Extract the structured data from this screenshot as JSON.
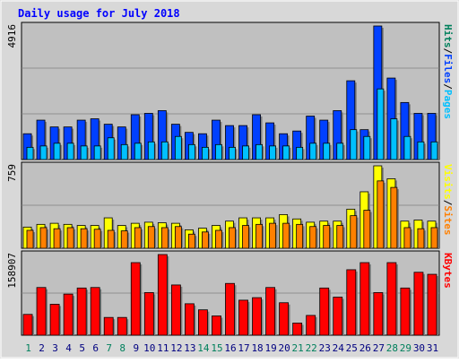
{
  "chart_data": [
    {
      "type": "bar",
      "title": "Daily usage for July 2018",
      "ymax_label": "4916",
      "ylim": [
        0,
        4916
      ],
      "categories": [
        "1",
        "2",
        "3",
        "4",
        "5",
        "6",
        "7",
        "8",
        "9",
        "10",
        "11",
        "12",
        "13",
        "14",
        "15",
        "16",
        "17",
        "18",
        "19",
        "20",
        "21",
        "22",
        "23",
        "24",
        "25",
        "26",
        "27",
        "28",
        "29",
        "30",
        "31"
      ],
      "series": [
        {
          "name": "Hits",
          "values": [
            0,
            0,
            0,
            0,
            0,
            0,
            0,
            0,
            0,
            0,
            0,
            0,
            0,
            0,
            0,
            0,
            0,
            0,
            0,
            0,
            0,
            0,
            0,
            0,
            0,
            0,
            0,
            0,
            0,
            0,
            0
          ]
        },
        {
          "name": "Files",
          "values": [
            950,
            1450,
            1200,
            1200,
            1450,
            1500,
            1300,
            1200,
            1650,
            1700,
            1800,
            1300,
            1000,
            950,
            1450,
            1250,
            1250,
            1650,
            1350,
            950,
            1050,
            1600,
            1450,
            1800,
            2900,
            1100,
            4916,
            3000,
            2100,
            1700,
            1700
          ]
        },
        {
          "name": "Pages",
          "values": [
            450,
            500,
            600,
            600,
            500,
            500,
            800,
            550,
            600,
            650,
            650,
            850,
            550,
            450,
            550,
            450,
            500,
            550,
            500,
            500,
            450,
            600,
            600,
            600,
            1100,
            850,
            2600,
            1500,
            850,
            650,
            650
          ]
        }
      ],
      "legend": [
        "Pages",
        "/",
        "Files",
        "/",
        "Hits"
      ],
      "legend_colors": {
        "Pages": "#00c0ff",
        "Files": "#0040ff",
        "Hits": "#00805c"
      }
    },
    {
      "type": "bar",
      "ymax_label": "759",
      "ylim": [
        0,
        759
      ],
      "series": [
        {
          "name": "Visits",
          "values": [
            195,
            220,
            230,
            220,
            210,
            210,
            280,
            210,
            230,
            240,
            235,
            230,
            170,
            185,
            210,
            250,
            280,
            280,
            280,
            310,
            270,
            240,
            250,
            250,
            360,
            520,
            759,
            640,
            250,
            260,
            250
          ]
        },
        {
          "name": "Sites",
          "values": [
            165,
            190,
            180,
            190,
            180,
            175,
            165,
            160,
            190,
            200,
            190,
            200,
            130,
            150,
            165,
            190,
            210,
            220,
            230,
            230,
            220,
            200,
            210,
            210,
            300,
            350,
            620,
            560,
            190,
            180,
            190
          ]
        }
      ],
      "legend": [
        "Sites",
        "/",
        "Visits"
      ],
      "legend_colors": {
        "Visits": "#ffff00",
        "Sites": "#ff8000"
      }
    },
    {
      "type": "bar",
      "ymax_label": "158907",
      "ylim": [
        0,
        158907
      ],
      "series": [
        {
          "name": "KBytes",
          "values": [
            41000,
            94000,
            61000,
            81000,
            93000,
            94000,
            35000,
            35000,
            143000,
            84000,
            158907,
            99000,
            62000,
            50000,
            38000,
            102000,
            69000,
            74000,
            94000,
            64000,
            24000,
            39000,
            93000,
            75000,
            129000,
            143000,
            84000,
            143000,
            93000,
            124000,
            120000
          ]
        }
      ],
      "legend": [
        "KBytes"
      ],
      "legend_colors": {
        "KBytes": "#ff0000"
      }
    }
  ],
  "x_label_weekend_days": [
    1,
    7,
    8,
    14,
    15,
    21,
    22,
    28,
    29
  ],
  "colors": {
    "panel_bg": "#c0c0c0",
    "frame_bg": "#d8d8d8",
    "title": "#0000ff",
    "day_label": "#000080",
    "weekend_label": "#00805c"
  }
}
